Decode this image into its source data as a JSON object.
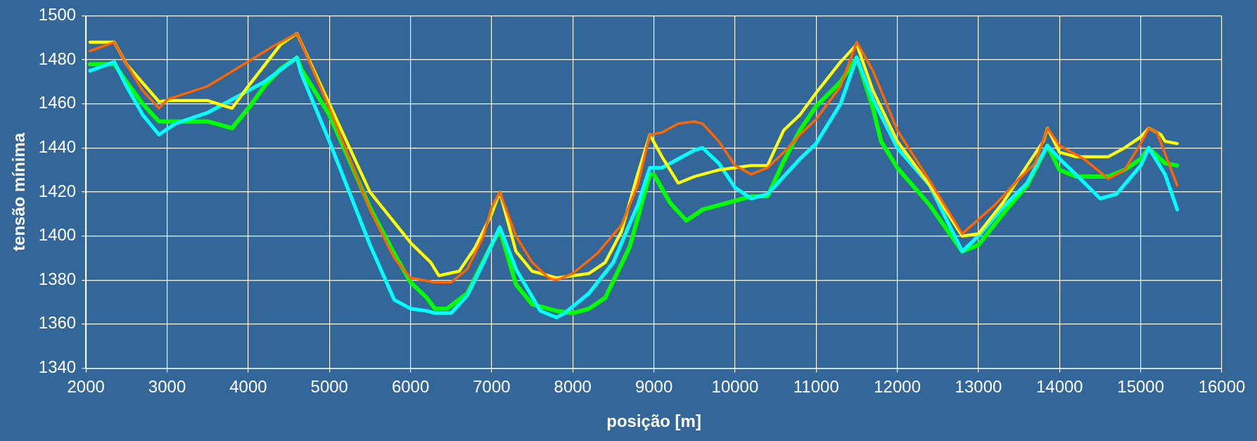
{
  "chart_data": {
    "type": "line",
    "xlabel": "posição [m]",
    "ylabel": "tensão mínima",
    "xlim": [
      2000,
      16000
    ],
    "xticks": [
      2000,
      3000,
      4000,
      5000,
      6000,
      7000,
      8000,
      9000,
      10000,
      11000,
      12000,
      13000,
      14000,
      15000,
      16000
    ],
    "ylim": [
      1340,
      1500
    ],
    "yticks": [
      1340,
      1360,
      1380,
      1400,
      1420,
      1440,
      1460,
      1480,
      1500
    ],
    "grid": true,
    "marker": "none",
    "line_style": "solid",
    "series": [
      {
        "color": "#00ff00",
        "x": [
          2050,
          2350,
          2500,
          2700,
          2900,
          3000,
          3500,
          3800,
          4000,
          4200,
          4400,
          4600,
          4650,
          5000,
          5500,
          5800,
          6000,
          6200,
          6300,
          6450,
          6700,
          7000,
          7100,
          7300,
          7500,
          7800,
          8000,
          8200,
          8400,
          8700,
          8950,
          9000,
          9200,
          9400,
          9600,
          10000,
          10200,
          10400,
          10600,
          10800,
          11000,
          11300,
          11500,
          11700,
          11800,
          12000,
          12400,
          12800,
          13000,
          13300,
          13600,
          13850,
          14000,
          14200,
          14600,
          14800,
          15000,
          15100,
          15300,
          15450
        ],
        "values": [
          1478,
          1478,
          1470,
          1460,
          1452,
          1452,
          1452,
          1449,
          1458,
          1468,
          1476,
          1481,
          1476,
          1455,
          1413,
          1392,
          1379,
          1372,
          1367,
          1367,
          1374,
          1396,
          1403,
          1378,
          1369,
          1366,
          1365,
          1367,
          1372,
          1395,
          1428,
          1428,
          1415,
          1407,
          1412,
          1416,
          1418,
          1418,
          1434,
          1448,
          1459,
          1470,
          1481,
          1458,
          1443,
          1431,
          1414,
          1393,
          1396,
          1410,
          1423,
          1441,
          1430,
          1427,
          1427,
          1430,
          1435,
          1440,
          1433,
          1432
        ]
      },
      {
        "color": "#00ffff",
        "x": [
          2050,
          2200,
          2350,
          2500,
          2700,
          2900,
          3100,
          3500,
          3800,
          4200,
          4600,
          4650,
          5000,
          5500,
          5800,
          6000,
          6200,
          6300,
          6500,
          6700,
          6900,
          7100,
          7300,
          7600,
          7800,
          7900,
          8200,
          8500,
          8800,
          8950,
          9100,
          9300,
          9500,
          9600,
          9800,
          10000,
          10200,
          10400,
          10800,
          11000,
          11300,
          11500,
          11700,
          12000,
          12400,
          12800,
          13000,
          13300,
          13600,
          13700,
          13850,
          14000,
          14200,
          14500,
          14700,
          15000,
          15100,
          15300,
          15450
        ],
        "values": [
          1475,
          1477,
          1479,
          1468,
          1455,
          1446,
          1451,
          1456,
          1462,
          1470,
          1481,
          1474,
          1443,
          1396,
          1371,
          1367,
          1366,
          1365,
          1365,
          1373,
          1388,
          1404,
          1385,
          1366,
          1363,
          1365,
          1374,
          1388,
          1414,
          1431,
          1431,
          1435,
          1439,
          1440,
          1433,
          1422,
          1417,
          1419,
          1435,
          1442,
          1460,
          1481,
          1462,
          1440,
          1423,
          1393,
          1400,
          1413,
          1424,
          1431,
          1441,
          1435,
          1428,
          1417,
          1419,
          1432,
          1440,
          1428,
          1412
        ]
      },
      {
        "color": "#ffff00",
        "x": [
          2050,
          2350,
          2500,
          2900,
          3000,
          3500,
          3800,
          4000,
          4400,
          4600,
          5000,
          5500,
          6000,
          6250,
          6350,
          6600,
          6800,
          7000,
          7100,
          7300,
          7500,
          7800,
          8200,
          8400,
          8600,
          8800,
          8950,
          9100,
          9300,
          9500,
          9800,
          10000,
          10200,
          10400,
          10600,
          10800,
          11000,
          11300,
          11500,
          11700,
          12000,
          12400,
          12800,
          13000,
          13300,
          13600,
          13800,
          13850,
          14000,
          14200,
          14600,
          14800,
          15000,
          15100,
          15250,
          15300,
          15450
        ],
        "values": [
          1488,
          1488,
          1478,
          1461,
          1461.5,
          1461.5,
          1458,
          1468,
          1487,
          1492,
          1460,
          1420,
          1397,
          1388,
          1382,
          1384,
          1395,
          1410,
          1420,
          1393,
          1384,
          1381,
          1383,
          1388,
          1402,
          1428,
          1446,
          1436,
          1424,
          1427,
          1430,
          1431,
          1432,
          1432,
          1448,
          1455,
          1465,
          1479,
          1487,
          1466,
          1443,
          1423,
          1400,
          1401,
          1415,
          1432,
          1443,
          1449,
          1438,
          1436,
          1436,
          1440,
          1445,
          1449,
          1446,
          1443,
          1442
        ]
      },
      {
        "color": "#ff6600",
        "x": [
          2050,
          2200,
          2350,
          2500,
          2700,
          2900,
          3000,
          3500,
          3900,
          4300,
          4600,
          4650,
          5000,
          5500,
          5800,
          6000,
          6300,
          6500,
          6700,
          6900,
          7000,
          7100,
          7300,
          7500,
          7700,
          7800,
          8000,
          8300,
          8600,
          8800,
          8950,
          9100,
          9300,
          9500,
          9600,
          9800,
          10000,
          10200,
          10400,
          10600,
          10800,
          11000,
          11300,
          11500,
          11700,
          12000,
          12400,
          12800,
          13200,
          13500,
          13700,
          13850,
          14000,
          14300,
          14600,
          14800,
          15000,
          15100,
          15200,
          15450
        ],
        "values": [
          1484,
          1486,
          1488,
          1478,
          1466,
          1458,
          1462,
          1468,
          1477,
          1486,
          1492,
          1488,
          1458,
          1412,
          1390,
          1381,
          1379,
          1379,
          1385,
          1400,
          1413,
          1420,
          1400,
          1388,
          1381,
          1380,
          1383,
          1392,
          1405,
          1423,
          1446,
          1447,
          1451,
          1452,
          1451,
          1443,
          1432,
          1428,
          1431,
          1438,
          1446,
          1453,
          1468,
          1488,
          1475,
          1448,
          1425,
          1401,
          1414,
          1426,
          1433,
          1449,
          1441,
          1435,
          1426,
          1430,
          1442,
          1449,
          1447,
          1423
        ]
      }
    ]
  }
}
